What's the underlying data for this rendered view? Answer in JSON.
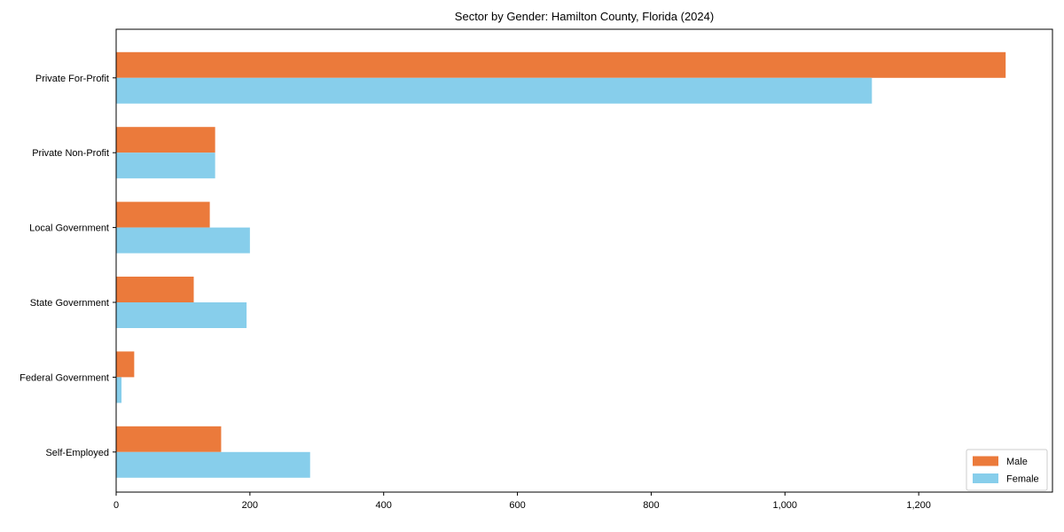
{
  "chart_data": {
    "type": "bar",
    "orientation": "horizontal",
    "title": "Sector by Gender: Hamilton County, Florida (2024)",
    "categories": [
      "Private For-Profit",
      "Private Non-Profit",
      "Local Government",
      "State Government",
      "Federal Government",
      "Self-Employed"
    ],
    "series": [
      {
        "name": "Male",
        "color": "#EB7A3B",
        "values": [
          1330,
          148,
          140,
          116,
          27,
          157
        ]
      },
      {
        "name": "Female",
        "color": "#87CEEB",
        "values": [
          1130,
          148,
          200,
          195,
          8,
          290
        ]
      }
    ],
    "xlabel": "",
    "ylabel": "",
    "xlim": [
      0,
      1400
    ],
    "x_ticks": {
      "values": [
        0,
        200,
        400,
        600,
        800,
        1000,
        1200
      ],
      "labels": [
        "0",
        "200",
        "400",
        "600",
        "800",
        "1,000",
        "1,200"
      ]
    },
    "grid": false,
    "legend": {
      "position": "lower right",
      "labels": [
        "Male",
        "Female"
      ]
    },
    "colors": {
      "axis": "#000000",
      "text": "#000000",
      "legend_border": "#cccccc",
      "background": "#ffffff"
    }
  }
}
